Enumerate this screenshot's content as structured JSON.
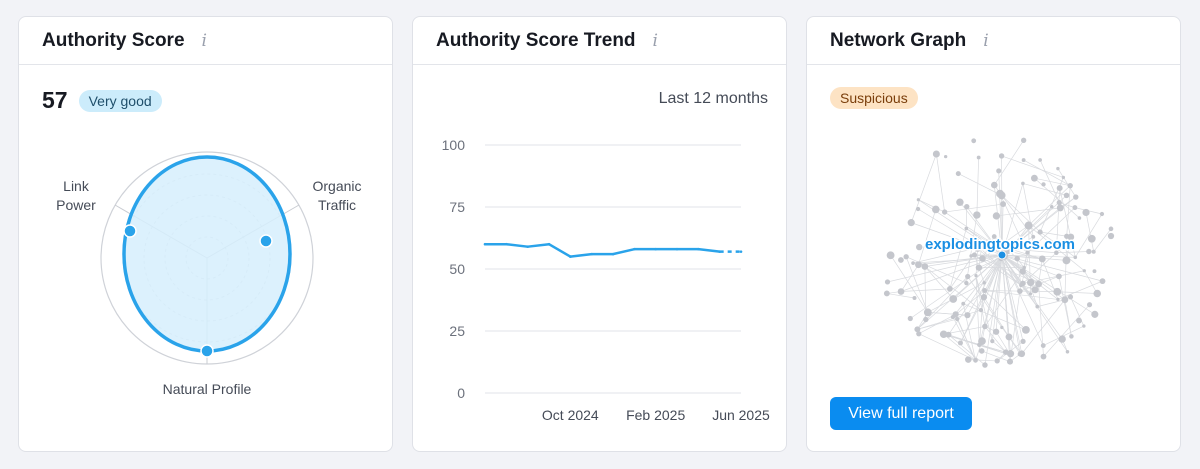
{
  "authority_score": {
    "title": "Authority Score",
    "info_icon": "i",
    "score": "57",
    "badge": "Very good",
    "radar": {
      "labels": {
        "link_power": "Link\nPower",
        "organic_traffic": "Organic\nTraffic",
        "natural_profile": "Natural Profile"
      }
    },
    "colors": {
      "accent": "#2aa3ea",
      "fill": "#d6effd"
    }
  },
  "trend": {
    "title": "Authority Score Trend",
    "info_icon": "i",
    "period": "Last 12 months"
  },
  "network": {
    "title": "Network Graph",
    "info_icon": "i",
    "badge": "Suspicious",
    "center_label": "explodingtopics.com",
    "button_label": "View full report",
    "colors": {
      "node": "#c4c6cc",
      "edge": "#d8dade",
      "center": "#1a8fe3"
    }
  },
  "chart_data": {
    "type": "line",
    "x": [
      "Jun 2024",
      "Jul 2024",
      "Aug 2024",
      "Sep 2024",
      "Oct 2024",
      "Nov 2024",
      "Dec 2024",
      "Jan 2025",
      "Feb 2025",
      "Mar 2025",
      "Apr 2025",
      "May 2025",
      "Jun 2025"
    ],
    "series": [
      {
        "values": [
          60,
          60,
          59,
          60,
          55,
          56,
          56,
          58,
          58,
          58,
          58,
          57,
          57
        ]
      }
    ],
    "xticks": [
      "Oct 2024",
      "Feb 2025",
      "Jun 2025"
    ],
    "yticks": [
      0,
      25,
      50,
      75,
      100
    ],
    "ylim": [
      0,
      100
    ],
    "grid": true,
    "line_color": "#2aa3ea"
  }
}
